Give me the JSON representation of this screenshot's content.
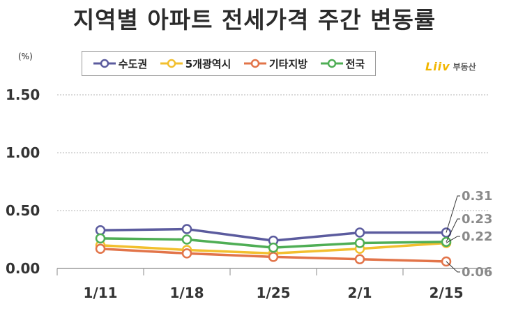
{
  "title": "지역별 아파트 전세가격 주간 변동률",
  "unit_label": "(%)",
  "brand": {
    "logo": "Liiv",
    "text": "부동산"
  },
  "chart_data": {
    "type": "line",
    "categories": [
      "1/11",
      "1/18",
      "1/25",
      "2/1",
      "2/15"
    ],
    "ylim": [
      0,
      1.5
    ],
    "yticks": [
      "0.00",
      "0.50",
      "1.00",
      "1.50"
    ],
    "yticks_values": [
      0,
      0.5,
      1.0,
      1.5
    ],
    "grid": true,
    "legend_position": "top",
    "series": [
      {
        "name": "수도권",
        "color": "#5b5b9e",
        "values": [
          0.33,
          0.34,
          0.24,
          0.31,
          0.31
        ]
      },
      {
        "name": "5개광역시",
        "color": "#f2bf2e",
        "values": [
          0.2,
          0.16,
          0.13,
          0.17,
          0.22
        ]
      },
      {
        "name": "기타지방",
        "color": "#e27449",
        "values": [
          0.17,
          0.13,
          0.1,
          0.08,
          0.06
        ]
      },
      {
        "name": "전국",
        "color": "#4fae55",
        "values": [
          0.26,
          0.25,
          0.18,
          0.22,
          0.23
        ]
      }
    ],
    "annotations": [
      {
        "text": "0.31",
        "series": "수도권"
      },
      {
        "text": "0.23",
        "series": "전국"
      },
      {
        "text": "0.22",
        "series": "5개광역시"
      },
      {
        "text": "0.06",
        "series": "기타지방"
      }
    ]
  }
}
